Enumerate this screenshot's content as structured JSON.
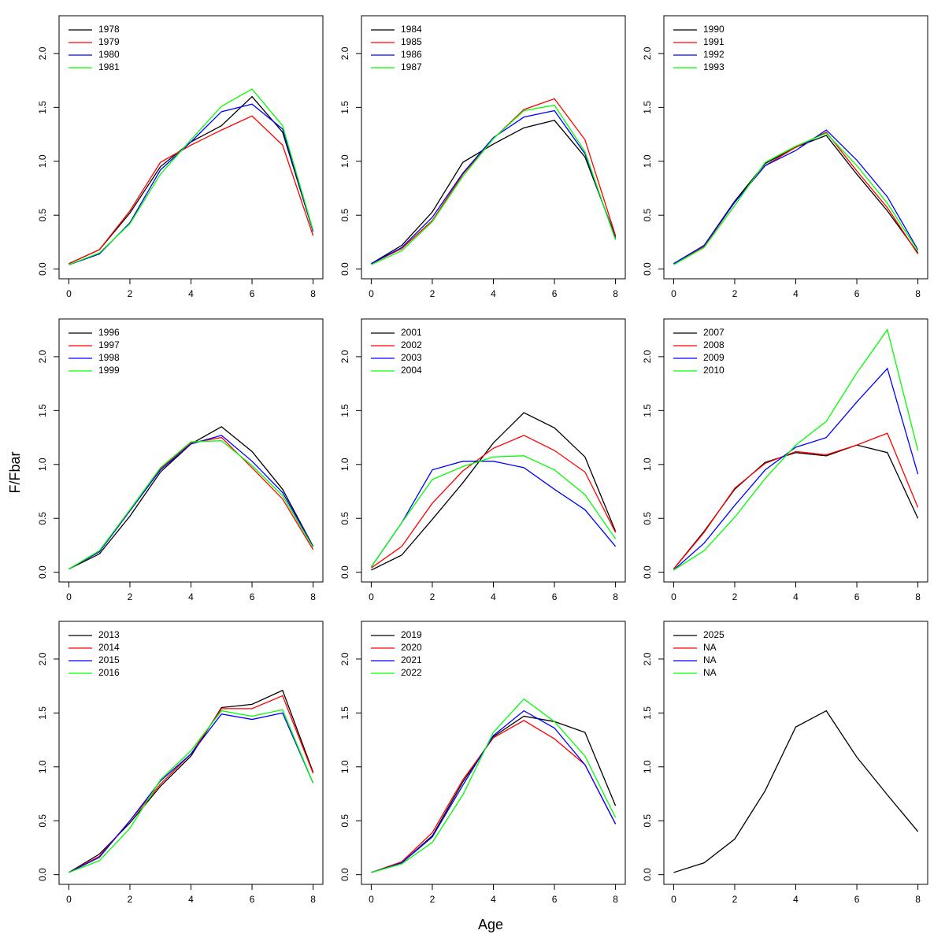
{
  "xlabel": "Age",
  "ylabel": "F/Fbar",
  "chart_data": [
    {
      "type": "line",
      "x": [
        0,
        1,
        2,
        3,
        4,
        5,
        6,
        7,
        8
      ],
      "xlim": [
        -0.32,
        8.32
      ],
      "ylim": [
        -0.09,
        2.35
      ],
      "xticks": [
        0,
        2,
        4,
        6,
        8
      ],
      "yticks": [
        {
          "value": 0,
          "label": "0.0"
        },
        0.5,
        {
          "value": 1,
          "label": "1.0"
        },
        1.5,
        {
          "value": 2,
          "label": "2.0"
        }
      ],
      "legend": "top-left",
      "series": [
        {
          "name": "1978",
          "color": "#000000",
          "values": [
            0.05,
            0.18,
            0.52,
            0.95,
            1.18,
            1.33,
            1.6,
            1.27,
            0.35
          ]
        },
        {
          "name": "1979",
          "color": "#ff0000",
          "values": [
            0.05,
            0.18,
            0.54,
            0.99,
            1.15,
            1.29,
            1.42,
            1.15,
            0.31
          ]
        },
        {
          "name": "1980",
          "color": "#0000ff",
          "values": [
            0.04,
            0.14,
            0.43,
            0.92,
            1.18,
            1.46,
            1.53,
            1.3,
            0.35
          ]
        },
        {
          "name": "1981",
          "color": "#00ff00",
          "values": [
            0.04,
            0.15,
            0.42,
            0.88,
            1.2,
            1.51,
            1.67,
            1.33,
            0.36
          ]
        }
      ]
    },
    {
      "type": "line",
      "x": [
        0,
        1,
        2,
        3,
        4,
        5,
        6,
        7,
        8
      ],
      "xlim": [
        -0.32,
        8.32
      ],
      "ylim": [
        -0.09,
        2.35
      ],
      "xticks": [
        0,
        2,
        4,
        6,
        8
      ],
      "yticks": [
        {
          "value": 0,
          "label": "0.0"
        },
        0.5,
        {
          "value": 1,
          "label": "1.0"
        },
        1.5,
        {
          "value": 2,
          "label": "2.0"
        }
      ],
      "legend": "top-left",
      "series": [
        {
          "name": "1984",
          "color": "#000000",
          "values": [
            0.05,
            0.22,
            0.53,
            0.99,
            1.16,
            1.31,
            1.38,
            1.04,
            0.3
          ]
        },
        {
          "name": "1985",
          "color": "#ff0000",
          "values": [
            0.05,
            0.19,
            0.45,
            0.88,
            1.21,
            1.48,
            1.58,
            1.2,
            0.31
          ]
        },
        {
          "name": "1986",
          "color": "#0000ff",
          "values": [
            0.05,
            0.2,
            0.48,
            0.89,
            1.22,
            1.41,
            1.47,
            1.07,
            0.28
          ]
        },
        {
          "name": "1987",
          "color": "#00ff00",
          "values": [
            0.04,
            0.17,
            0.44,
            0.86,
            1.21,
            1.47,
            1.52,
            1.09,
            0.27
          ]
        }
      ]
    },
    {
      "type": "line",
      "x": [
        0,
        1,
        2,
        3,
        4,
        5,
        6,
        7,
        8
      ],
      "xlim": [
        -0.32,
        8.32
      ],
      "ylim": [
        -0.09,
        2.35
      ],
      "xticks": [
        0,
        2,
        4,
        6,
        8
      ],
      "yticks": [
        {
          "value": 0,
          "label": "0.0"
        },
        0.5,
        {
          "value": 1,
          "label": "1.0"
        },
        1.5,
        {
          "value": 2,
          "label": "2.0"
        }
      ],
      "legend": "top-left",
      "series": [
        {
          "name": "1990",
          "color": "#000000",
          "values": [
            0.05,
            0.22,
            0.63,
            0.98,
            1.13,
            1.24,
            0.88,
            0.54,
            0.15
          ]
        },
        {
          "name": "1991",
          "color": "#ff0000",
          "values": [
            0.05,
            0.21,
            0.62,
            0.96,
            1.13,
            1.27,
            0.91,
            0.57,
            0.14
          ]
        },
        {
          "name": "1992",
          "color": "#0000ff",
          "values": [
            0.05,
            0.22,
            0.62,
            0.96,
            1.1,
            1.29,
            1.01,
            0.67,
            0.18
          ]
        },
        {
          "name": "1993",
          "color": "#00ff00",
          "values": [
            0.04,
            0.2,
            0.59,
            0.99,
            1.14,
            1.26,
            0.96,
            0.61,
            0.17
          ]
        }
      ]
    },
    {
      "type": "line",
      "x": [
        0,
        1,
        2,
        3,
        4,
        5,
        6,
        7,
        8
      ],
      "xlim": [
        -0.32,
        8.32
      ],
      "ylim": [
        -0.09,
        2.35
      ],
      "xticks": [
        0,
        2,
        4,
        6,
        8
      ],
      "yticks": [
        {
          "value": 0,
          "label": "0.0"
        },
        0.5,
        {
          "value": 1,
          "label": "1.0"
        },
        1.5,
        {
          "value": 2,
          "label": "2.0"
        }
      ],
      "legend": "top-left",
      "series": [
        {
          "name": "1996",
          "color": "#000000",
          "values": [
            0.03,
            0.17,
            0.52,
            0.93,
            1.19,
            1.35,
            1.12,
            0.77,
            0.24
          ]
        },
        {
          "name": "1997",
          "color": "#ff0000",
          "values": [
            0.03,
            0.19,
            0.57,
            0.96,
            1.2,
            1.25,
            0.97,
            0.68,
            0.21
          ]
        },
        {
          "name": "1998",
          "color": "#0000ff",
          "values": [
            0.03,
            0.19,
            0.57,
            0.95,
            1.19,
            1.27,
            1.03,
            0.74,
            0.24
          ]
        },
        {
          "name": "1999",
          "color": "#00ff00",
          "values": [
            0.03,
            0.2,
            0.58,
            0.97,
            1.21,
            1.22,
            0.99,
            0.71,
            0.23
          ]
        }
      ]
    },
    {
      "type": "line",
      "x": [
        0,
        1,
        2,
        3,
        4,
        5,
        6,
        7,
        8
      ],
      "xlim": [
        -0.32,
        8.32
      ],
      "ylim": [
        -0.09,
        2.35
      ],
      "xticks": [
        0,
        2,
        4,
        6,
        8
      ],
      "yticks": [
        {
          "value": 0,
          "label": "0.0"
        },
        0.5,
        {
          "value": 1,
          "label": "1.0"
        },
        1.5,
        {
          "value": 2,
          "label": "2.0"
        }
      ],
      "legend": "top-left",
      "series": [
        {
          "name": "2001",
          "color": "#000000",
          "values": [
            0.02,
            0.16,
            0.49,
            0.83,
            1.2,
            1.48,
            1.34,
            1.07,
            0.38
          ]
        },
        {
          "name": "2002",
          "color": "#ff0000",
          "values": [
            0.04,
            0.24,
            0.64,
            0.94,
            1.15,
            1.27,
            1.13,
            0.93,
            0.37
          ]
        },
        {
          "name": "2003",
          "color": "#0000ff",
          "values": [
            0.05,
            0.46,
            0.95,
            1.03,
            1.03,
            0.97,
            0.77,
            0.58,
            0.24
          ]
        },
        {
          "name": "2004",
          "color": "#00ff00",
          "values": [
            0.05,
            0.46,
            0.86,
            0.98,
            1.07,
            1.08,
            0.95,
            0.72,
            0.31
          ]
        }
      ]
    },
    {
      "type": "line",
      "x": [
        0,
        1,
        2,
        3,
        4,
        5,
        6,
        7,
        8
      ],
      "xlim": [
        -0.32,
        8.32
      ],
      "ylim": [
        -0.09,
        2.35
      ],
      "xticks": [
        0,
        2,
        4,
        6,
        8
      ],
      "yticks": [
        {
          "value": 0,
          "label": "0.0"
        },
        0.5,
        {
          "value": 1,
          "label": "1.0"
        },
        1.5,
        {
          "value": 2,
          "label": "2.0"
        }
      ],
      "legend": "top-left",
      "series": [
        {
          "name": "2007",
          "color": "#000000",
          "values": [
            0.03,
            0.38,
            0.77,
            1.02,
            1.11,
            1.08,
            1.18,
            1.11,
            0.5
          ]
        },
        {
          "name": "2008",
          "color": "#ff0000",
          "values": [
            0.03,
            0.37,
            0.78,
            1.01,
            1.12,
            1.09,
            1.18,
            1.29,
            0.6
          ]
        },
        {
          "name": "2009",
          "color": "#0000ff",
          "values": [
            0.02,
            0.27,
            0.62,
            0.95,
            1.16,
            1.25,
            1.58,
            1.89,
            0.91
          ]
        },
        {
          "name": "2010",
          "color": "#00ff00",
          "values": [
            0.02,
            0.2,
            0.51,
            0.87,
            1.18,
            1.4,
            1.85,
            2.25,
            1.13
          ]
        }
      ]
    },
    {
      "type": "line",
      "x": [
        0,
        1,
        2,
        3,
        4,
        5,
        6,
        7,
        8
      ],
      "xlim": [
        -0.32,
        8.32
      ],
      "ylim": [
        -0.09,
        2.35
      ],
      "xticks": [
        0,
        2,
        4,
        6,
        8
      ],
      "yticks": [
        {
          "value": 0,
          "label": "0.0"
        },
        0.5,
        {
          "value": 1,
          "label": "1.0"
        },
        1.5,
        {
          "value": 2,
          "label": "2.0"
        }
      ],
      "legend": "top-left",
      "series": [
        {
          "name": "2013",
          "color": "#000000",
          "values": [
            0.02,
            0.19,
            0.48,
            0.82,
            1.1,
            1.55,
            1.58,
            1.71,
            0.95
          ]
        },
        {
          "name": "2014",
          "color": "#ff0000",
          "values": [
            0.02,
            0.17,
            0.5,
            0.84,
            1.12,
            1.54,
            1.54,
            1.66,
            0.94
          ]
        },
        {
          "name": "2015",
          "color": "#0000ff",
          "values": [
            0.02,
            0.16,
            0.5,
            0.87,
            1.12,
            1.49,
            1.44,
            1.5,
            0.85
          ]
        },
        {
          "name": "2016",
          "color": "#00ff00",
          "values": [
            0.02,
            0.13,
            0.43,
            0.88,
            1.15,
            1.52,
            1.47,
            1.53,
            0.85
          ]
        }
      ]
    },
    {
      "type": "line",
      "x": [
        0,
        1,
        2,
        3,
        4,
        5,
        6,
        7,
        8
      ],
      "xlim": [
        -0.32,
        8.32
      ],
      "ylim": [
        -0.09,
        2.35
      ],
      "xticks": [
        0,
        2,
        4,
        6,
        8
      ],
      "yticks": [
        {
          "value": 0,
          "label": "0.0"
        },
        0.5,
        {
          "value": 1,
          "label": "1.0"
        },
        1.5,
        {
          "value": 2,
          "label": "2.0"
        }
      ],
      "legend": "top-left",
      "series": [
        {
          "name": "2019",
          "color": "#000000",
          "values": [
            0.02,
            0.11,
            0.36,
            0.86,
            1.28,
            1.47,
            1.42,
            1.32,
            0.64
          ]
        },
        {
          "name": "2020",
          "color": "#ff0000",
          "values": [
            0.02,
            0.12,
            0.39,
            0.88,
            1.27,
            1.43,
            1.26,
            1.02,
            0.47
          ]
        },
        {
          "name": "2021",
          "color": "#0000ff",
          "values": [
            0.02,
            0.11,
            0.35,
            0.83,
            1.29,
            1.52,
            1.36,
            1.02,
            0.47
          ]
        },
        {
          "name": "2022",
          "color": "#00ff00",
          "values": [
            0.02,
            0.1,
            0.3,
            0.74,
            1.32,
            1.63,
            1.42,
            1.1,
            0.53
          ]
        }
      ]
    },
    {
      "type": "line",
      "x": [
        0,
        1,
        2,
        3,
        4,
        5,
        6,
        7,
        8
      ],
      "xlim": [
        -0.32,
        8.32
      ],
      "ylim": [
        -0.09,
        2.35
      ],
      "xticks": [
        0,
        2,
        4,
        6,
        8
      ],
      "yticks": [
        {
          "value": 0,
          "label": "0.0"
        },
        0.5,
        {
          "value": 1,
          "label": "1.0"
        },
        1.5,
        {
          "value": 2,
          "label": "2.0"
        }
      ],
      "legend": "top-left",
      "series": [
        {
          "name": "2025",
          "color": "#000000",
          "values": [
            0.02,
            0.11,
            0.33,
            0.78,
            1.37,
            1.52,
            1.09,
            0.74,
            0.4
          ]
        },
        {
          "name": "NA",
          "color": "#ff0000",
          "values": [
            null,
            null,
            null,
            null,
            null,
            null,
            null,
            null,
            null
          ]
        },
        {
          "name": "NA",
          "color": "#0000ff",
          "values": [
            null,
            null,
            null,
            null,
            null,
            null,
            null,
            null,
            null
          ]
        },
        {
          "name": "NA",
          "color": "#00ff00",
          "values": [
            null,
            null,
            null,
            null,
            null,
            null,
            null,
            null,
            null
          ]
        }
      ]
    }
  ]
}
